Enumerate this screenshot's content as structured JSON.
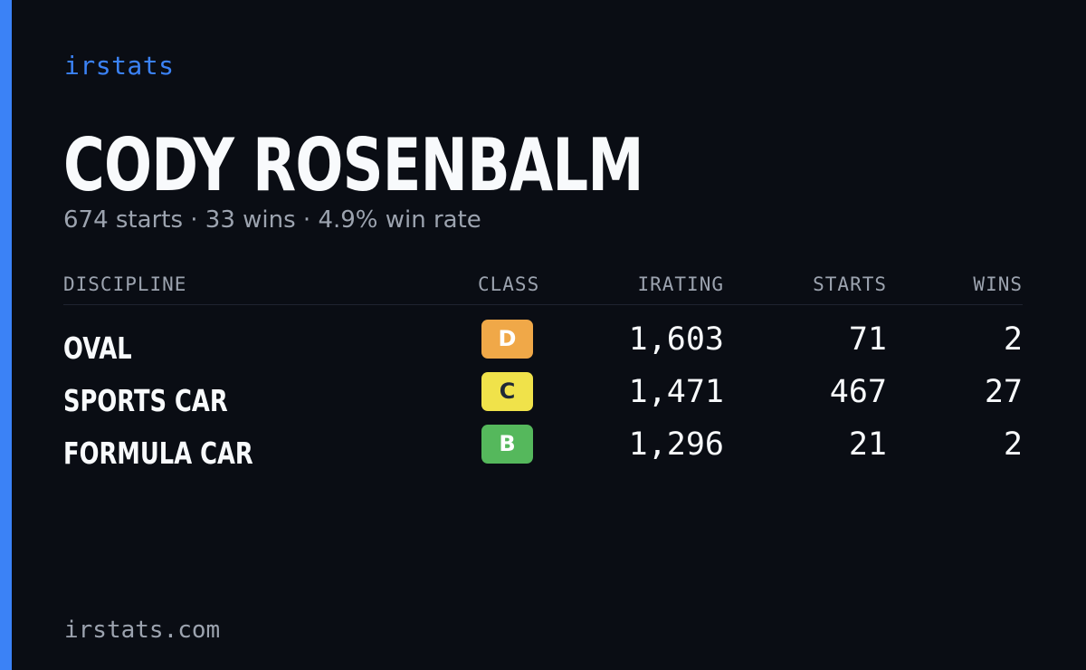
{
  "brand": "irstats",
  "driver": {
    "name": "CODY ROSENBALM",
    "summary": "674 starts · 33 wins · 4.9% win rate"
  },
  "table": {
    "headers": {
      "discipline": "DISCIPLINE",
      "class": "CLASS",
      "irating": "IRATING",
      "starts": "STARTS",
      "wins": "WINS"
    },
    "rows": [
      {
        "discipline": "OVAL",
        "class": "D",
        "class_color": "#f0a848",
        "class_text_color": "#ffffff",
        "irating": "1,603",
        "starts": "71",
        "wins": "2"
      },
      {
        "discipline": "SPORTS CAR",
        "class": "C",
        "class_color": "#f0e24a",
        "class_text_color": "#1f2937",
        "irating": "1,471",
        "starts": "467",
        "wins": "27"
      },
      {
        "discipline": "FORMULA CAR",
        "class": "B",
        "class_color": "#55b85c",
        "class_text_color": "#ffffff",
        "irating": "1,296",
        "starts": "21",
        "wins": "2"
      }
    ]
  },
  "footer": "irstats.com",
  "colors": {
    "accent": "#3b82f6",
    "background": "#0a0d14",
    "muted": "#9ca3af"
  }
}
